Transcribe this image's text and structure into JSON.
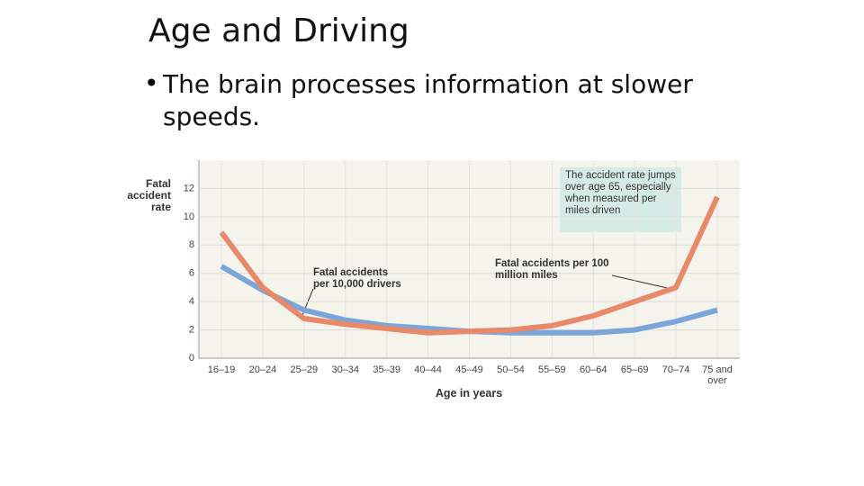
{
  "title": "Age and Driving",
  "bullet": "The brain processes information at slower speeds.",
  "chart_data": {
    "type": "line",
    "y_label": "Fatal accident rate",
    "x_label": "Age in years",
    "annotation": "The accident rate jumps over age 65, especially when measured per miles driven",
    "categories": [
      "16–19",
      "20–24",
      "25–29",
      "30–34",
      "35–39",
      "40–44",
      "45–49",
      "50–54",
      "55–59",
      "60–64",
      "65–69",
      "70–74",
      "75 and over"
    ],
    "series": [
      {
        "name": "Fatal accidents per 10,000 drivers",
        "color": "#7ca5d9",
        "values": [
          6.5,
          4.8,
          3.4,
          2.7,
          2.3,
          2.1,
          1.9,
          1.8,
          1.8,
          1.8,
          2.0,
          2.6,
          3.4
        ]
      },
      {
        "name": "Fatal accidents per 100 million miles",
        "color": "#e8896a",
        "values": [
          8.9,
          5.0,
          2.8,
          2.4,
          2.1,
          1.8,
          1.9,
          2.0,
          2.3,
          3.0,
          4.0,
          5.0,
          11.4
        ]
      }
    ],
    "ylim": [
      0,
      14
    ],
    "yticks": [
      0,
      2,
      4,
      6,
      8,
      10,
      12
    ],
    "grid": true
  }
}
